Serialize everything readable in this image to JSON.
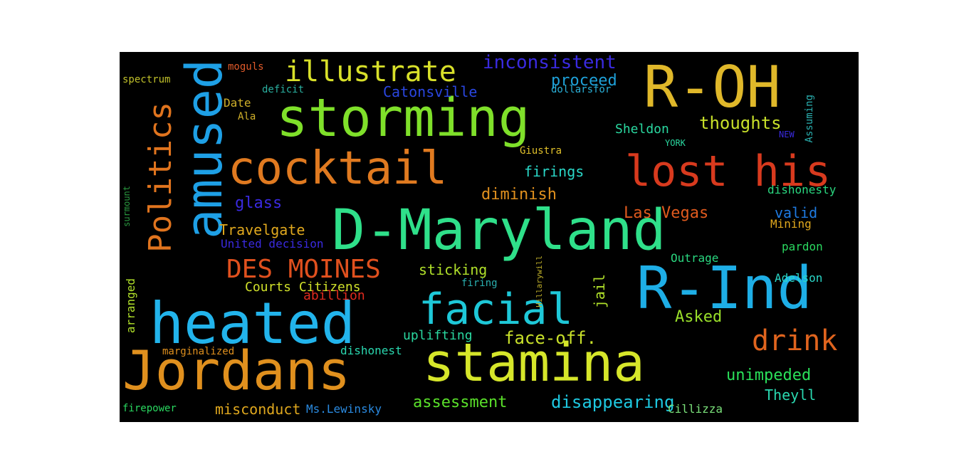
{
  "words": [
    {
      "text": "D-Maryland",
      "color": "#2fe08a"
    },
    {
      "text": "storming",
      "color": "#7fe02a"
    },
    {
      "text": "R-OH",
      "color": "#e0b82a"
    },
    {
      "text": "amused",
      "color": "#1ea0e6"
    },
    {
      "text": "cocktail",
      "color": "#e07a20"
    },
    {
      "text": "lost his",
      "color": "#d83a1e"
    },
    {
      "text": "heated",
      "color": "#22b4ec"
    },
    {
      "text": "Jordans",
      "color": "#e0901e"
    },
    {
      "text": "stamina",
      "color": "#d6e62a"
    },
    {
      "text": "R-Ind",
      "color": "#1eaee6"
    },
    {
      "text": "facial",
      "color": "#1ec8d8"
    },
    {
      "text": "Politics",
      "color": "#e0741e"
    },
    {
      "text": "illustrate",
      "color": "#d8e02a"
    },
    {
      "text": "drink",
      "color": "#e0641e"
    },
    {
      "text": "DES MOINES",
      "color": "#e0501e"
    },
    {
      "text": "inconsistent",
      "color": "#3a2ae0"
    },
    {
      "text": "proceed",
      "color": "#1ea0d8"
    },
    {
      "text": "Catonsville",
      "color": "#2a46e0"
    },
    {
      "text": "thoughts",
      "color": "#c8e02a"
    },
    {
      "text": "Sheldon",
      "color": "#2ad8a0"
    },
    {
      "text": "Las Vegas",
      "color": "#e05a1e"
    },
    {
      "text": "diminish",
      "color": "#e0901e"
    },
    {
      "text": "firings",
      "color": "#2ad8c8"
    },
    {
      "text": "glass",
      "color": "#3a2ae0"
    },
    {
      "text": "valid",
      "color": "#1e7ae0"
    },
    {
      "text": "Travelgate",
      "color": "#e0a81e"
    },
    {
      "text": "sticking",
      "color": "#b0e02a"
    },
    {
      "text": "jail",
      "color": "#b0e02a"
    },
    {
      "text": "Courts Citizens",
      "color": "#d0e02a"
    },
    {
      "text": "face-off.",
      "color": "#c8e02a"
    },
    {
      "text": "Asked",
      "color": "#9ae02a"
    },
    {
      "text": "unimpeded",
      "color": "#2ae05a"
    },
    {
      "text": "Theyll",
      "color": "#2ad8b0"
    },
    {
      "text": "disappearing",
      "color": "#1ec8e0"
    },
    {
      "text": "assessment",
      "color": "#5ae02a"
    },
    {
      "text": "misconduct",
      "color": "#e0a81e"
    },
    {
      "text": "Ms.Lewinsky",
      "color": "#2a8ae0"
    },
    {
      "text": "Cillizza",
      "color": "#7ae07a"
    },
    {
      "text": "uplifting",
      "color": "#2ad8a0"
    },
    {
      "text": "dishonest",
      "color": "#2ad8b0"
    },
    {
      "text": "marginalized",
      "color": "#e0901e"
    },
    {
      "text": "firepower",
      "color": "#2ad860"
    },
    {
      "text": "arranged",
      "color": "#b0e02a"
    },
    {
      "text": "abillion",
      "color": "#e02a1e"
    },
    {
      "text": "Outrage",
      "color": "#2ad880"
    },
    {
      "text": "Adelson",
      "color": "#2ad8c8"
    },
    {
      "text": "pardon",
      "color": "#2ad860"
    },
    {
      "text": "Mining",
      "color": "#e0a81e"
    },
    {
      "text": "dishonesty",
      "color": "#2ad880"
    },
    {
      "text": "United decision",
      "color": "#3a2ae0"
    },
    {
      "text": "spectrum",
      "color": "#c0c02a"
    },
    {
      "text": "deficit",
      "color": "#2ab0a0"
    },
    {
      "text": "Date",
      "color": "#d0b02a"
    },
    {
      "text": "Ala",
      "color": "#d0b02a"
    },
    {
      "text": "Giustra",
      "color": "#e0c02a"
    },
    {
      "text": "YORK",
      "color": "#2ad8a0"
    },
    {
      "text": "NEW",
      "color": "#3a2ae0"
    },
    {
      "text": "dollarsfor",
      "color": "#2ab0d8"
    },
    {
      "text": "Assuming",
      "color": "#2ab0b0"
    },
    {
      "text": "moguls",
      "color": "#e05a2a"
    },
    {
      "text": "surmount",
      "color": "#2a9a40"
    },
    {
      "text": "firing",
      "color": "#2ab0b0"
    },
    {
      "text": "Hillarywill",
      "color": "#c0b02a"
    }
  ]
}
